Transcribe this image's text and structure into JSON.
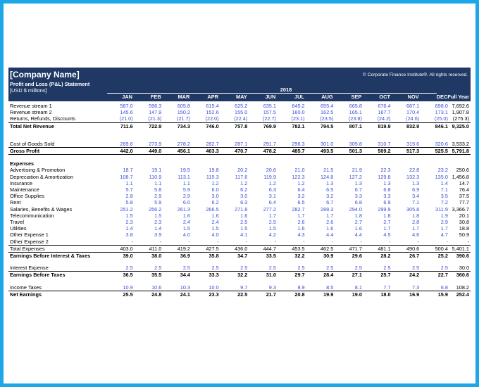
{
  "header": {
    "company": "[Company Name]",
    "title": "Profit and Loss (P&L) Statement",
    "units": "[USD $ millions]",
    "copyright": "© Corporate Finance Institute®. All rights reserved.",
    "year": "2018",
    "months": [
      "JAN",
      "FEB",
      "MAR",
      "APR",
      "MAY",
      "JUN",
      "JUL",
      "AUG",
      "SEP",
      "OCT",
      "NOV",
      "DEC"
    ],
    "full_year": "Full Year"
  },
  "rows": {
    "rev1": {
      "label": "Revenue stream 1",
      "values": [
        "587.0",
        "596.3",
        "605.8",
        "615.4",
        "625.2",
        "635.1",
        "645.2",
        "655.4",
        "665.8",
        "676.4",
        "687.1",
        "698.0"
      ],
      "total": "7,692.6"
    },
    "rev2": {
      "label": "Revenue stream 2",
      "values": [
        "145.6",
        "147.9",
        "150.2",
        "152.6",
        "155.0",
        "157.5",
        "160.0",
        "162.5",
        "165.1",
        "167.7",
        "170.4",
        "173.1"
      ],
      "total": "1,907.8"
    },
    "returns": {
      "label": "Returns, Refunds, Discounts",
      "values": [
        "(21.0)",
        "(21.3)",
        "(21.7)",
        "(22.0)",
        "(22.4)",
        "(22.7)",
        "(23.1)",
        "(23.5)",
        "(23.8)",
        "(24.2)",
        "(24.6)",
        "(25.0)"
      ],
      "total": "(275.3)"
    },
    "net_revenue": {
      "label": "Total Net Revenue",
      "values": [
        "711.6",
        "722.9",
        "734.3",
        "746.0",
        "757.8",
        "769.9",
        "782.1",
        "794.5",
        "807.1",
        "819.9",
        "832.9",
        "846.1"
      ],
      "total": "9,325.0"
    },
    "cogs": {
      "label": "Cost of Goods Sold",
      "values": [
        "269.6",
        "273.9",
        "278.2",
        "282.7",
        "287.1",
        "291.7",
        "296.3",
        "301.0",
        "305.8",
        "310.7",
        "315.6",
        "320.6"
      ],
      "total": "3,533.2"
    },
    "gross_profit": {
      "label": "Gross Profit",
      "values": [
        "442.0",
        "449.0",
        "456.1",
        "463.3",
        "470.7",
        "478.2",
        "485.7",
        "493.5",
        "501.3",
        "509.2",
        "517.3",
        "525.5"
      ],
      "total": "5,791.8"
    },
    "expenses_header": {
      "label": "Expenses"
    },
    "advertising": {
      "label": "Advertising & Promotion",
      "values": [
        "18.7",
        "19.1",
        "19.5",
        "19.8",
        "20.2",
        "20.6",
        "21.0",
        "21.5",
        "21.9",
        "22.3",
        "22.8",
        "23.2"
      ],
      "total": "250.6"
    },
    "depreciation": {
      "label": "Depreciation & Amortization",
      "values": [
        "108.7",
        "110.9",
        "113.1",
        "115.3",
        "117.6",
        "119.9",
        "122.3",
        "124.8",
        "127.2",
        "129.8",
        "132.3",
        "135.0"
      ],
      "total": "1,456.8"
    },
    "insurance": {
      "label": "Insurance",
      "values": [
        "1.1",
        "1.1",
        "1.1",
        "1.2",
        "1.2",
        "1.2",
        "1.2",
        "1.3",
        "1.3",
        "1.3",
        "1.3",
        "1.4"
      ],
      "total": "14.7"
    },
    "maintenance": {
      "label": "Maintenance",
      "values": [
        "5.7",
        "5.8",
        "5.9",
        "6.0",
        "6.2",
        "6.3",
        "6.4",
        "6.5",
        "6.7",
        "6.8",
        "6.9",
        "7.1"
      ],
      "total": "76.4"
    },
    "office": {
      "label": "Office Supplies",
      "values": [
        "2.8",
        "2.9",
        "2.9",
        "3.0",
        "3.0",
        "3.1",
        "3.2",
        "3.2",
        "3.3",
        "3.3",
        "3.4",
        "3.5"
      ],
      "total": "37.5"
    },
    "rent": {
      "label": "Rent",
      "values": [
        "5.8",
        "5.9",
        "6.0",
        "6.2",
        "6.3",
        "6.4",
        "6.5",
        "6.7",
        "6.8",
        "6.9",
        "7.1",
        "7.2"
      ],
      "total": "77.7"
    },
    "salaries": {
      "label": "Salaries, Benefits & Wages",
      "values": [
        "251.2",
        "256.2",
        "261.3",
        "266.5",
        "271.8",
        "277.2",
        "282.7",
        "288.3",
        "294.0",
        "299.9",
        "305.8",
        "311.9"
      ],
      "total": "3,366.7"
    },
    "telecom": {
      "label": "Telecommunication",
      "values": [
        "1.5",
        "1.5",
        "1.6",
        "1.6",
        "1.6",
        "1.7",
        "1.7",
        "1.7",
        "1.8",
        "1.8",
        "1.8",
        "1.9"
      ],
      "total": "20.1"
    },
    "travel": {
      "label": "Travel",
      "values": [
        "2.3",
        "2.3",
        "2.4",
        "2.4",
        "2.5",
        "2.5",
        "2.6",
        "2.6",
        "2.7",
        "2.7",
        "2.8",
        "2.9"
      ],
      "total": "30.8"
    },
    "utilities": {
      "label": "Utilities",
      "values": [
        "1.4",
        "1.4",
        "1.5",
        "1.5",
        "1.5",
        "1.5",
        "1.6",
        "1.6",
        "1.6",
        "1.7",
        "1.7",
        "1.7"
      ],
      "total": "18.8"
    },
    "other1": {
      "label": "Other Expense 1",
      "values": [
        "3.8",
        "3.9",
        "4.0",
        "4.0",
        "4.1",
        "4.2",
        "4.3",
        "4.4",
        "4.4",
        "4.5",
        "4.6",
        "4.7"
      ],
      "total": "50.9"
    },
    "other2": {
      "label": "Other Expense 2",
      "values": [
        "-",
        "-",
        "-",
        "-",
        "-",
        "-",
        "-",
        "-",
        "-",
        "-",
        "-",
        "-"
      ],
      "total": "-"
    },
    "total_expenses": {
      "label": "Total Expenses",
      "values": [
        "403.0",
        "411.0",
        "419.2",
        "427.5",
        "436.0",
        "444.7",
        "453.5",
        "462.5",
        "471.7",
        "481.1",
        "490.6",
        "500.4"
      ],
      "total": "5,401.1"
    },
    "ebit": {
      "label": "Earnings Before Interest & Taxes",
      "values": [
        "39.0",
        "38.0",
        "36.9",
        "35.8",
        "34.7",
        "33.5",
        "32.2",
        "30.9",
        "29.6",
        "28.2",
        "26.7",
        "25.2"
      ],
      "total": "390.6"
    },
    "interest": {
      "label": "Interest Expense",
      "values": [
        "2.5",
        "2.5",
        "2.5",
        "2.5",
        "2.5",
        "2.5",
        "2.5",
        "2.5",
        "2.5",
        "2.5",
        "2.5",
        "2.5"
      ],
      "total": "30.0"
    },
    "ebt": {
      "label": "Earnings Before Taxes",
      "values": [
        "36.5",
        "35.5",
        "34.4",
        "33.3",
        "32.2",
        "31.0",
        "29.7",
        "28.4",
        "27.1",
        "25.7",
        "24.2",
        "22.7"
      ],
      "total": "360.6"
    },
    "taxes": {
      "label": "Income Taxes",
      "values": [
        "10.9",
        "10.6",
        "10.3",
        "10.0",
        "9.7",
        "9.3",
        "8.9",
        "8.5",
        "8.1",
        "7.7",
        "7.3",
        "6.8"
      ],
      "total": "108.2"
    },
    "net_earnings": {
      "label": "Net Earnings",
      "values": [
        "25.5",
        "24.8",
        "24.1",
        "23.3",
        "22.5",
        "21.7",
        "20.8",
        "19.9",
        "19.0",
        "18.0",
        "16.9",
        "15.9"
      ],
      "total": "252.4"
    }
  },
  "colors": {
    "frame": "#1ea7e6",
    "banner": "#1f3864",
    "input_values": "#3b4fd8"
  }
}
